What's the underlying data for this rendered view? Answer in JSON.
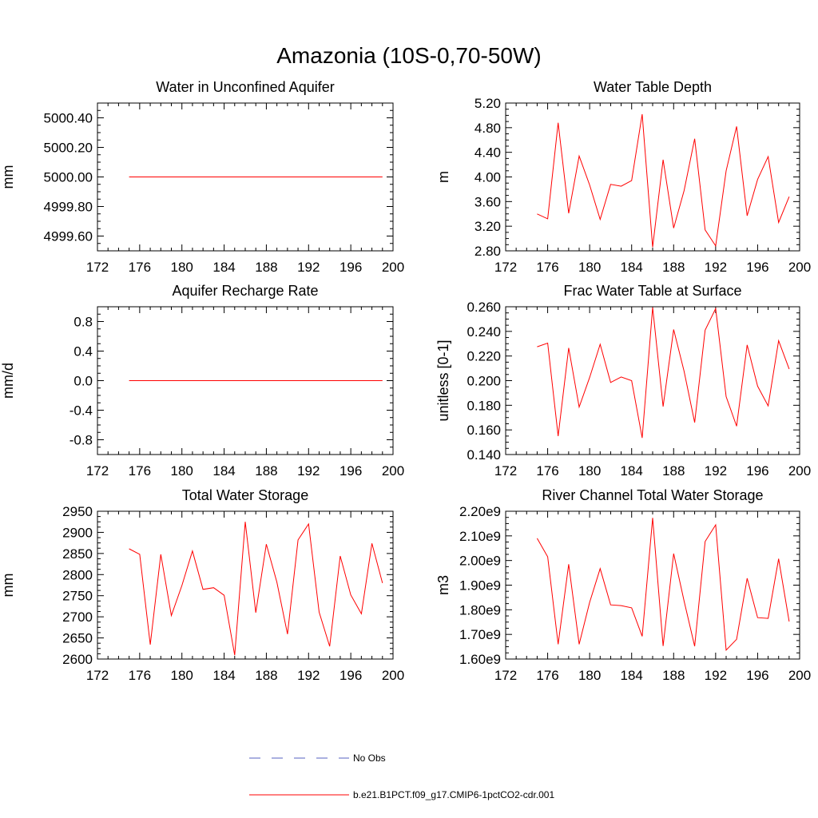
{
  "figure": {
    "title": "Amazonia (10S-0,70-50W)"
  },
  "legend": {
    "items": [
      {
        "label": "No Obs",
        "color": "#5560c0",
        "dash": true
      },
      {
        "label": "b.e21.B1PCT.f09_g17.CMIP6-1pctCO2-cdr.001",
        "color": "#ff0000",
        "dash": false
      }
    ]
  },
  "chart_data": [
    {
      "type": "line",
      "title": "Water in Unconfined Aquifer",
      "ylabel": "mm",
      "xlim": [
        172,
        200
      ],
      "ylim": [
        4999.5,
        5000.5
      ],
      "xticks": [
        "172",
        "176",
        "180",
        "184",
        "188",
        "192",
        "196",
        "200"
      ],
      "yticks": [
        {
          "v": 4999.6,
          "label": "4999.60"
        },
        {
          "v": 4999.8,
          "label": "4999.80"
        },
        {
          "v": 5000.0,
          "label": "5000.00"
        },
        {
          "v": 5000.2,
          "label": "5000.20"
        },
        {
          "v": 5000.4,
          "label": "5000.40"
        }
      ],
      "series": [
        {
          "color": "#ff0000",
          "x": [
            175,
            176,
            177,
            178,
            179,
            180,
            181,
            182,
            183,
            184,
            185,
            186,
            187,
            188,
            189,
            190,
            191,
            192,
            193,
            194,
            195,
            196,
            197,
            198,
            199
          ],
          "y": [
            5000,
            5000,
            5000,
            5000,
            5000,
            5000,
            5000,
            5000,
            5000,
            5000,
            5000,
            5000,
            5000,
            5000,
            5000,
            5000,
            5000,
            5000,
            5000,
            5000,
            5000,
            5000,
            5000,
            5000,
            5000
          ]
        }
      ]
    },
    {
      "type": "line",
      "title": "Water Table Depth",
      "ylabel": "m",
      "xlim": [
        172,
        200
      ],
      "ylim": [
        2.8,
        5.2
      ],
      "xticks": [
        "172",
        "176",
        "180",
        "184",
        "188",
        "192",
        "196",
        "200"
      ],
      "yticks": [
        {
          "v": 2.8,
          "label": "2.80"
        },
        {
          "v": 3.2,
          "label": "3.20"
        },
        {
          "v": 3.6,
          "label": "3.60"
        },
        {
          "v": 4.0,
          "label": "4.00"
        },
        {
          "v": 4.4,
          "label": "4.40"
        },
        {
          "v": 4.8,
          "label": "4.80"
        },
        {
          "v": 5.2,
          "label": "5.20"
        }
      ],
      "series": [
        {
          "color": "#ff0000",
          "x": [
            175,
            176,
            177,
            178,
            179,
            180,
            181,
            182,
            183,
            184,
            185,
            186,
            187,
            188,
            189,
            190,
            191,
            192,
            193,
            194,
            195,
            196,
            197,
            198,
            199
          ],
          "y": [
            3.4,
            3.32,
            4.88,
            3.41,
            4.34,
            3.87,
            3.31,
            3.88,
            3.85,
            3.94,
            5.02,
            2.86,
            4.28,
            3.17,
            3.78,
            4.62,
            3.14,
            2.88,
            4.1,
            4.82,
            3.37,
            3.96,
            4.33,
            3.26,
            3.68
          ]
        }
      ]
    },
    {
      "type": "line",
      "title": "Aquifer Recharge Rate",
      "ylabel": "mm/d",
      "xlim": [
        172,
        200
      ],
      "ylim": [
        -1.0,
        1.0
      ],
      "xticks": [
        "172",
        "176",
        "180",
        "184",
        "188",
        "192",
        "196",
        "200"
      ],
      "yticks": [
        {
          "v": -0.8,
          "label": "-0.8"
        },
        {
          "v": -0.4,
          "label": "-0.4"
        },
        {
          "v": 0.0,
          "label": "0.0"
        },
        {
          "v": 0.4,
          "label": "0.4"
        },
        {
          "v": 0.8,
          "label": "0.8"
        }
      ],
      "series": [
        {
          "color": "#ff0000",
          "x": [
            175,
            176,
            177,
            178,
            179,
            180,
            181,
            182,
            183,
            184,
            185,
            186,
            187,
            188,
            189,
            190,
            191,
            192,
            193,
            194,
            195,
            196,
            197,
            198,
            199
          ],
          "y": [
            0,
            0,
            0,
            0,
            0,
            0,
            0,
            0,
            0,
            0,
            0,
            0,
            0,
            0,
            0,
            0,
            0,
            0,
            0,
            0,
            0,
            0,
            0,
            0,
            0
          ]
        }
      ]
    },
    {
      "type": "line",
      "title": "Frac Water Table at Surface",
      "ylabel": "unitless [0-1]",
      "xlim": [
        172,
        200
      ],
      "ylim": [
        0.14,
        0.26
      ],
      "xticks": [
        "172",
        "176",
        "180",
        "184",
        "188",
        "192",
        "196",
        "200"
      ],
      "yticks": [
        {
          "v": 0.14,
          "label": "0.140"
        },
        {
          "v": 0.16,
          "label": "0.160"
        },
        {
          "v": 0.18,
          "label": "0.180"
        },
        {
          "v": 0.2,
          "label": "0.200"
        },
        {
          "v": 0.22,
          "label": "0.220"
        },
        {
          "v": 0.24,
          "label": "0.240"
        },
        {
          "v": 0.26,
          "label": "0.260"
        }
      ],
      "series": [
        {
          "color": "#ff0000",
          "x": [
            175,
            176,
            177,
            178,
            179,
            180,
            181,
            182,
            183,
            184,
            185,
            186,
            187,
            188,
            189,
            190,
            191,
            192,
            193,
            194,
            195,
            196,
            197,
            198,
            199
          ],
          "y": [
            0.2275,
            0.2305,
            0.155,
            0.2265,
            0.1785,
            0.2025,
            0.2295,
            0.1985,
            0.203,
            0.2,
            0.1535,
            0.2595,
            0.179,
            0.2415,
            0.2075,
            0.166,
            0.241,
            0.2585,
            0.187,
            0.163,
            0.229,
            0.1955,
            0.1795,
            0.2325,
            0.2095
          ]
        }
      ]
    },
    {
      "type": "line",
      "title": "Total Water Storage",
      "ylabel": "mm",
      "xlim": [
        172,
        200
      ],
      "ylim": [
        2600,
        2950
      ],
      "xticks": [
        "172",
        "176",
        "180",
        "184",
        "188",
        "192",
        "196",
        "200"
      ],
      "yticks": [
        {
          "v": 2600,
          "label": "2600"
        },
        {
          "v": 2650,
          "label": "2650"
        },
        {
          "v": 2700,
          "label": "2700"
        },
        {
          "v": 2750,
          "label": "2750"
        },
        {
          "v": 2800,
          "label": "2800"
        },
        {
          "v": 2850,
          "label": "2850"
        },
        {
          "v": 2900,
          "label": "2900"
        },
        {
          "v": 2950,
          "label": "2950"
        }
      ],
      "series": [
        {
          "color": "#ff0000",
          "x": [
            175,
            176,
            177,
            178,
            179,
            180,
            181,
            182,
            183,
            184,
            185,
            186,
            187,
            188,
            189,
            190,
            191,
            192,
            193,
            194,
            195,
            196,
            197,
            198,
            199
          ],
          "y": [
            2861,
            2848,
            2634,
            2848,
            2703,
            2774,
            2856,
            2765,
            2769,
            2751,
            2609,
            2925,
            2710,
            2872,
            2782,
            2659,
            2882,
            2920,
            2711,
            2630,
            2844,
            2752,
            2707,
            2874,
            2780
          ]
        }
      ]
    },
    {
      "type": "line",
      "title": "River Channel Total Water Storage",
      "ylabel": "m3",
      "xlim": [
        172,
        200
      ],
      "ylim": [
        1600000000.0,
        2200000000.0
      ],
      "xticks": [
        "172",
        "176",
        "180",
        "184",
        "188",
        "192",
        "196",
        "200"
      ],
      "yticks": [
        {
          "v": 1600000000.0,
          "label": "1.60e9"
        },
        {
          "v": 1700000000.0,
          "label": "1.70e9"
        },
        {
          "v": 1800000000.0,
          "label": "1.80e9"
        },
        {
          "v": 1900000000.0,
          "label": "1.90e9"
        },
        {
          "v": 2000000000.0,
          "label": "2.00e9"
        },
        {
          "v": 2100000000.0,
          "label": "2.10e9"
        },
        {
          "v": 2200000000.0,
          "label": "2.20e9"
        }
      ],
      "series": [
        {
          "color": "#ff0000",
          "x": [
            175,
            176,
            177,
            178,
            179,
            180,
            181,
            182,
            183,
            184,
            185,
            186,
            187,
            188,
            189,
            190,
            191,
            192,
            193,
            194,
            195,
            196,
            197,
            198,
            199
          ],
          "y": [
            2090000000.0,
            2015000000.0,
            1660000000.0,
            1985000000.0,
            1660000000.0,
            1830000000.0,
            1967000000.0,
            1820000000.0,
            1817000000.0,
            1808000000.0,
            1692000000.0,
            2173000000.0,
            1653000000.0,
            2028000000.0,
            1835000000.0,
            1652000000.0,
            2077000000.0,
            2145000000.0,
            1636000000.0,
            1680000000.0,
            1928000000.0,
            1768000000.0,
            1765000000.0,
            2007000000.0,
            1752000000.0
          ]
        }
      ]
    }
  ]
}
